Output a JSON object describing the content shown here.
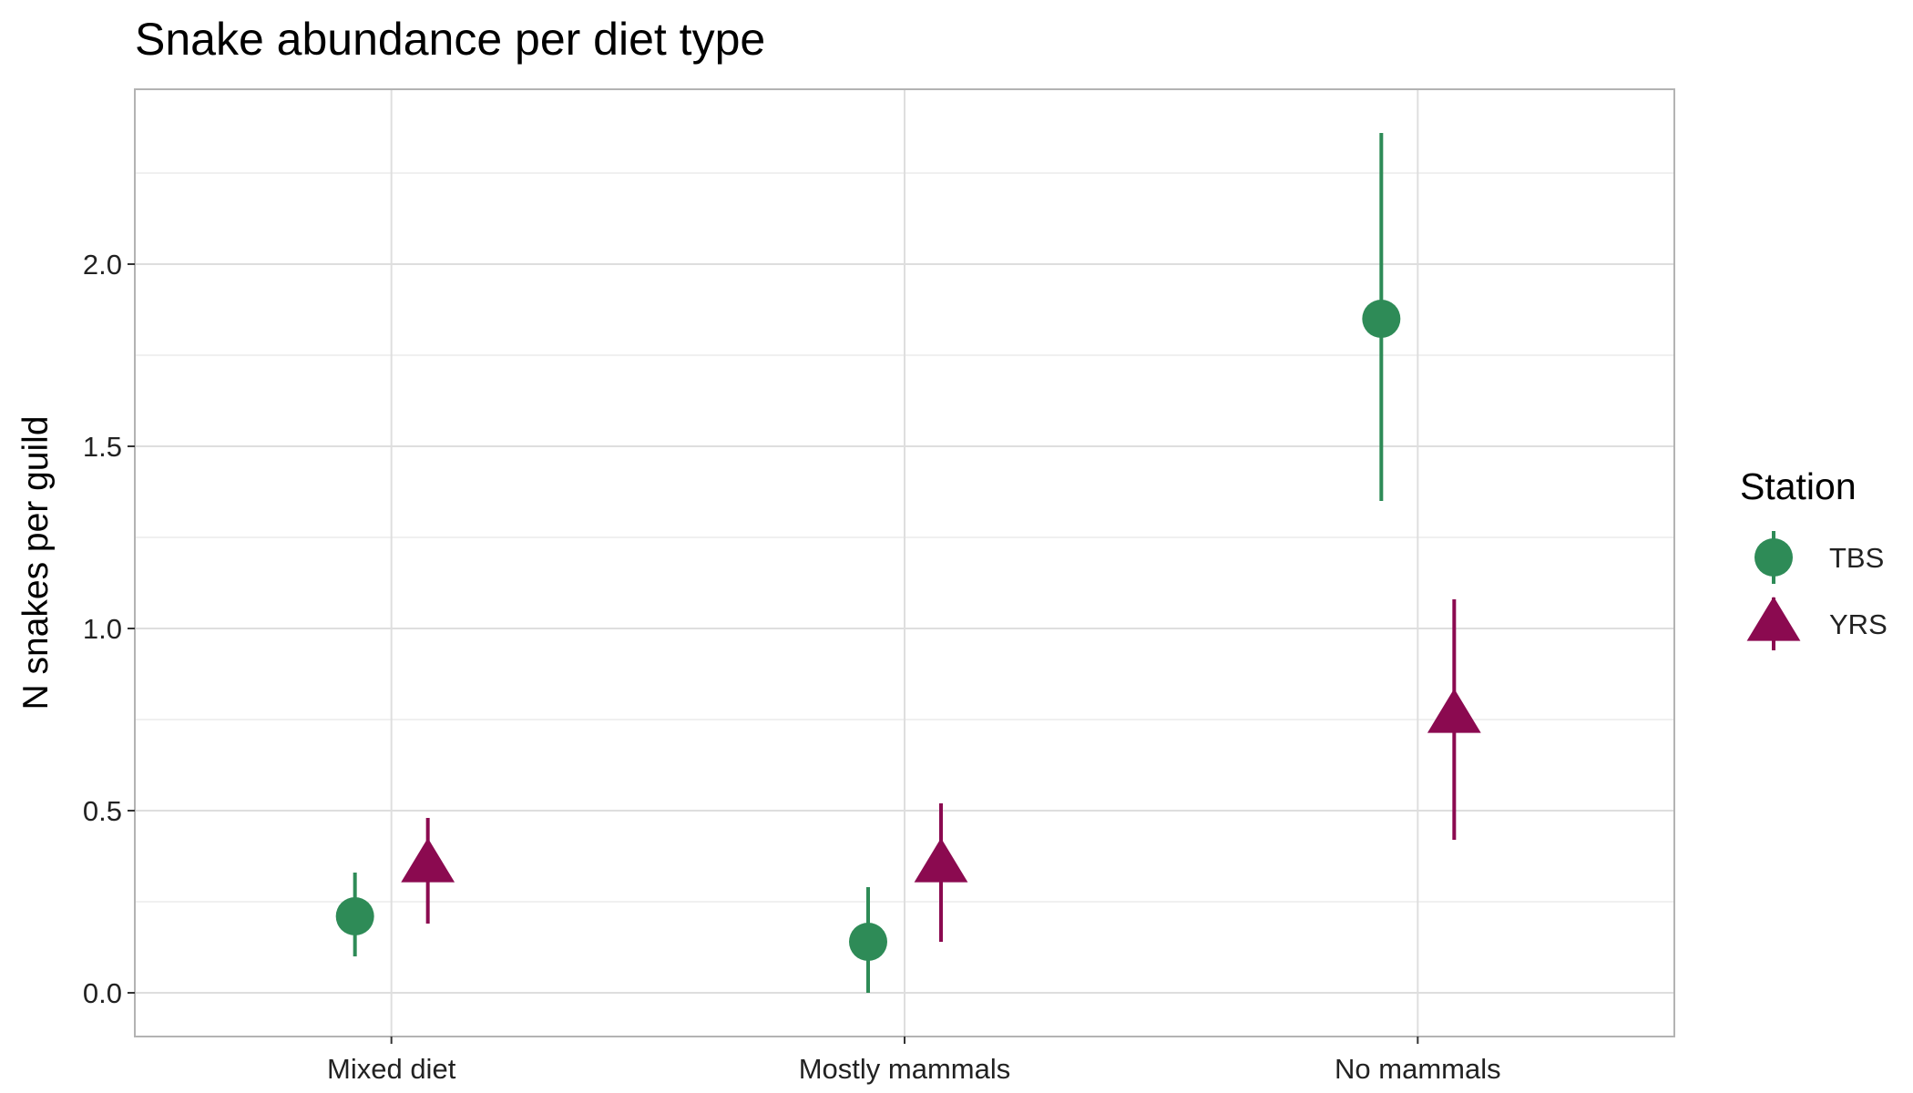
{
  "chart_data": {
    "type": "scatter",
    "title": "Snake abundance per diet type",
    "xlabel": "",
    "ylabel": "N snakes per guild",
    "categories": [
      "Mixed diet",
      "Mostly mammals",
      "No mammals"
    ],
    "ylim": [
      -0.12,
      2.48
    ],
    "yticks": [
      "0.0",
      "0.5",
      "1.0",
      "1.5",
      "2.0"
    ],
    "grid": true,
    "legend": {
      "title": "Station",
      "position": "right"
    },
    "series": [
      {
        "name": "TBS",
        "shape": "circle",
        "color": "#2E8B57",
        "values": [
          0.21,
          0.14,
          1.85
        ],
        "lower": [
          0.1,
          0.0,
          1.35
        ],
        "upper": [
          0.33,
          0.29,
          2.36
        ]
      },
      {
        "name": "YRS",
        "shape": "triangle",
        "color": "#8B0A50",
        "values": [
          0.35,
          0.35,
          0.76
        ],
        "lower": [
          0.19,
          0.14,
          0.42
        ],
        "upper": [
          0.48,
          0.52,
          1.08
        ]
      }
    ]
  }
}
